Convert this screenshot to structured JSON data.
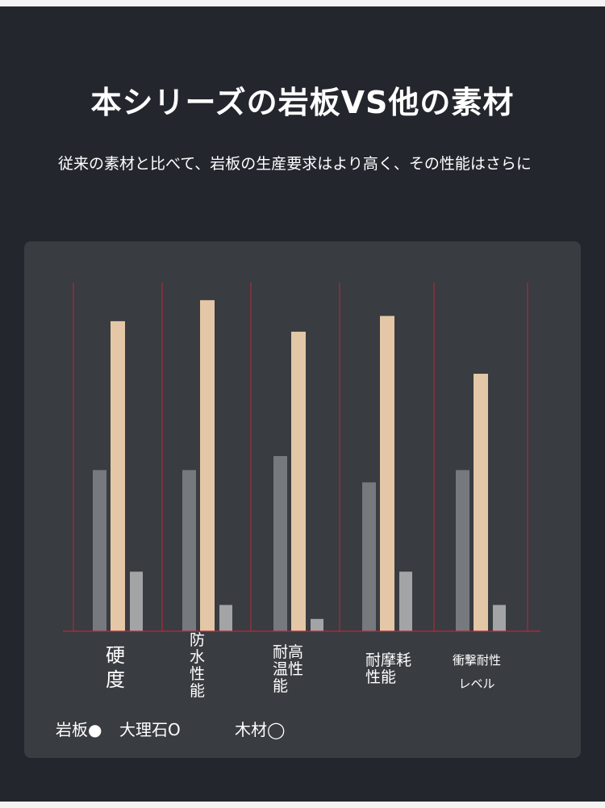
{
  "headline": "本シリーズの岩板VS他の素材",
  "subtitle": "従来の素材と比べて、岩板の生産要求はより高く、その性能はさらに",
  "chart_data": {
    "type": "bar",
    "categories": [
      "硬度",
      "防水性能",
      "耐高温性能",
      "耐摩耗性能",
      "衝撃耐性レベル"
    ],
    "category_labels": [
      "硬\n度",
      "防\n水\n性\n能",
      "耐高\n温性\n能",
      "耐摩耗\n性能",
      "衝撃耐性\nレベル"
    ],
    "series": [
      {
        "name": "大理石O",
        "values": [
          46,
          46,
          50,
          42.5,
          46
        ],
        "color": "#76797e"
      },
      {
        "name": "岩板●",
        "values": [
          88.5,
          94.5,
          85.5,
          90,
          73.5
        ],
        "color": "#e3c7a6"
      },
      {
        "name": "木材◯",
        "values": [
          17,
          7.5,
          3.5,
          17,
          7.5
        ],
        "color": "#a3a4a6"
      }
    ],
    "ylim": [
      0,
      100
    ],
    "grid": true,
    "legend_position": "bottom-left",
    "divider_color": "#c0273a"
  },
  "legend": {
    "items": [
      "岩板●",
      "大理石O",
      "木材◯"
    ]
  }
}
